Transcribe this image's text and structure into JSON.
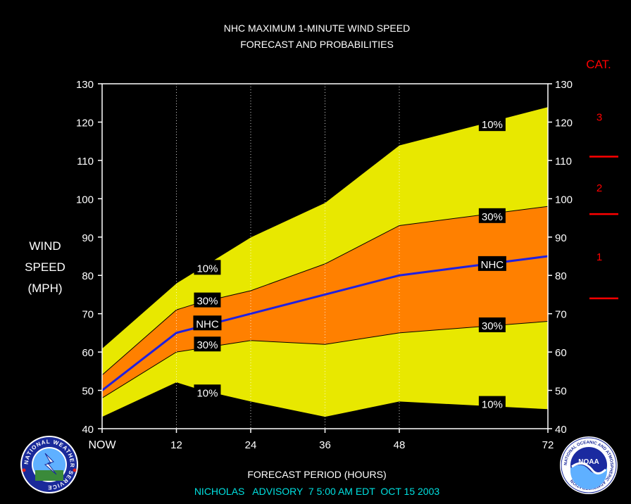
{
  "title_line1": "NHC MAXIMUM 1-MINUTE WIND SPEED",
  "title_line2": "FORECAST AND PROBABILITIES",
  "ylabel": [
    "WIND",
    "SPEED",
    "(MPH)"
  ],
  "xlabel": "FORECAST PERIOD (HOURS)",
  "advisory": "NICHOLAS   ADVISORY  7 5:00 AM EDT  OCT 15 2003",
  "category": {
    "title": "CAT.",
    "labels": [
      {
        "label": "3",
        "mph": 121.5
      },
      {
        "label": "2",
        "mph": 103
      },
      {
        "label": "1",
        "mph": 85
      }
    ],
    "thresholds": [
      111,
      96,
      74
    ],
    "color": "#ff0000"
  },
  "logos": {
    "nws": [
      "NATIONAL WEATHER SERVICE"
    ],
    "noaa": [
      "NOAA",
      "NATIONAL OCEANIC AND ATMOSPHERIC ADMINISTRATION",
      "U.S. DEPARTMENT OF COMMERCE"
    ]
  },
  "colors": {
    "background": "#000000",
    "band_10": "#e8e800",
    "band_30": "#ff8000",
    "nhc_line": "#2020e0",
    "label_box": "#000000",
    "advisory_text": "#00e0e0"
  },
  "chart_data": {
    "type": "area",
    "x": [
      0,
      12,
      24,
      36,
      48,
      72
    ],
    "x_tick_labels": [
      "NOW",
      "12",
      "24",
      "36",
      "48",
      "72"
    ],
    "x_tick_positions": [
      0,
      12,
      24,
      36,
      48,
      72
    ],
    "xlim": [
      0,
      72
    ],
    "ylim": [
      40,
      130
    ],
    "y_ticks": [
      40,
      50,
      60,
      70,
      80,
      90,
      100,
      110,
      120,
      130
    ],
    "dotted_vertical_gridlines": [
      12,
      24,
      36,
      48
    ],
    "dotted_vertical_gridlines_note": "12 and 36 dotted, 24 and 48 dotted",
    "series": [
      {
        "name": "10%",
        "x": [
          0,
          12,
          16,
          24,
          36,
          48,
          72
        ],
        "upper": [
          61,
          78,
          82,
          90,
          99,
          114,
          124
        ],
        "lower": [
          43,
          52,
          50,
          47,
          43,
          47,
          45
        ]
      },
      {
        "name": "30%",
        "x": [
          0,
          12,
          16,
          24,
          36,
          48,
          72
        ],
        "upper": [
          54,
          71,
          73,
          76,
          83,
          93,
          98
        ],
        "lower": [
          48,
          60,
          61,
          63,
          62,
          65,
          68
        ]
      },
      {
        "name": "NHC",
        "x": [
          0,
          12,
          24,
          36,
          48,
          72
        ],
        "values": [
          50,
          65,
          70,
          75,
          80,
          85
        ]
      }
    ],
    "annotations": [
      {
        "text": "10%",
        "x": 17,
        "y": 82
      },
      {
        "text": "30%",
        "x": 17,
        "y": 73.5
      },
      {
        "text": "NHC",
        "x": 17,
        "y": 67.5
      },
      {
        "text": "30%",
        "x": 17,
        "y": 62
      },
      {
        "text": "10%",
        "x": 17,
        "y": 49.5
      },
      {
        "text": "10%",
        "x": 63,
        "y": 119.5
      },
      {
        "text": "30%",
        "x": 63,
        "y": 95.5
      },
      {
        "text": "NHC",
        "x": 63,
        "y": 83
      },
      {
        "text": "30%",
        "x": 63,
        "y": 67
      },
      {
        "text": "10%",
        "x": 63,
        "y": 46.5
      }
    ]
  }
}
